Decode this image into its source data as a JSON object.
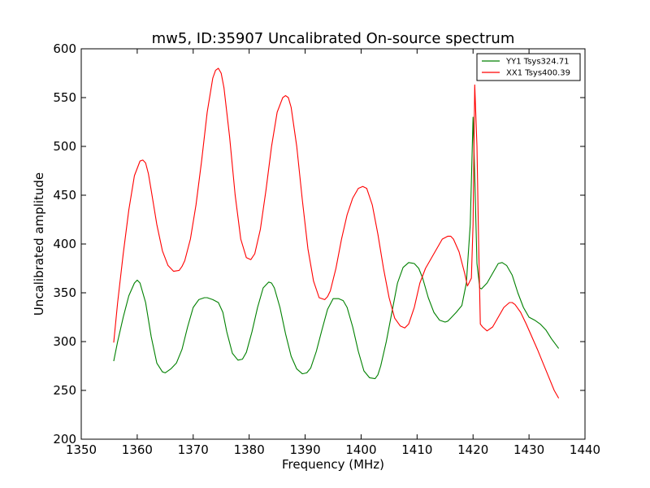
{
  "chart_data": {
    "type": "line",
    "title": "mw5, ID:35907 Uncalibrated On-source spectrum",
    "xlabel": "Frequency (MHz)",
    "ylabel": "Uncalibrated amplitude",
    "xlim": [
      1350,
      1440
    ],
    "ylim": [
      200,
      600
    ],
    "xticks": [
      1350,
      1360,
      1370,
      1380,
      1390,
      1400,
      1410,
      1420,
      1430,
      1440
    ],
    "yticks": [
      200,
      250,
      300,
      350,
      400,
      450,
      500,
      550,
      600
    ],
    "grid": false,
    "legend_position": "top-right",
    "series": [
      {
        "name": "YY1 Tsys324.71",
        "color": "#008000",
        "x": [
          1355.8,
          1356.5,
          1357.5,
          1358.5,
          1359.5,
          1360,
          1360.5,
          1361.5,
          1362.5,
          1363.5,
          1364.5,
          1365,
          1366,
          1367,
          1368,
          1369,
          1370,
          1371,
          1372,
          1372.5,
          1373.5,
          1374.5,
          1375.3,
          1376,
          1377,
          1378,
          1378.8,
          1379.5,
          1380.5,
          1381.5,
          1382.5,
          1383.5,
          1384,
          1384.5,
          1385.5,
          1386.5,
          1387.5,
          1388.5,
          1389.5,
          1390.3,
          1391,
          1392,
          1393,
          1394,
          1395,
          1396,
          1396.8,
          1397.5,
          1398.5,
          1399.5,
          1400.5,
          1401.5,
          1402.5,
          1403,
          1403.5,
          1404.5,
          1405.5,
          1406.5,
          1407.5,
          1408.5,
          1409.5,
          1410.3,
          1411,
          1412,
          1413,
          1414,
          1415,
          1415.5,
          1416,
          1417,
          1418,
          1418.8,
          1419.5,
          1420,
          1420.3,
          1420.7,
          1421.2,
          1421.5,
          1422.5,
          1423.5,
          1424.5,
          1425.2,
          1426,
          1427,
          1428,
          1429,
          1430,
          1431,
          1432,
          1433,
          1434,
          1435.3
        ],
        "y": [
          280,
          300,
          325,
          347,
          360,
          363,
          360,
          340,
          305,
          278,
          269,
          268,
          272,
          278,
          292,
          315,
          335,
          343,
          345,
          345,
          343,
          340,
          330,
          310,
          288,
          281,
          282,
          289,
          310,
          335,
          355,
          361,
          360,
          355,
          335,
          308,
          285,
          272,
          267,
          268,
          273,
          290,
          312,
          333,
          344,
          344,
          342,
          335,
          315,
          290,
          270,
          263,
          262,
          266,
          275,
          300,
          330,
          360,
          376,
          381,
          380,
          375,
          365,
          345,
          330,
          322,
          320,
          321,
          324,
          330,
          337,
          360,
          420,
          530,
          470,
          380,
          355,
          354,
          360,
          370,
          380,
          381,
          378,
          368,
          350,
          335,
          325,
          322,
          318,
          312,
          303,
          293
        ]
      },
      {
        "name": "XX1 Tsys400.39",
        "color": "#ff0000",
        "x": [
          1355.8,
          1356.5,
          1357.5,
          1358.5,
          1359.5,
          1360.5,
          1361,
          1361.5,
          1362,
          1362.5,
          1363.5,
          1364.5,
          1365.5,
          1366.5,
          1367.5,
          1368,
          1368.5,
          1369.5,
          1370.5,
          1371.5,
          1372.5,
          1373.5,
          1374,
          1374.5,
          1375,
          1375.5,
          1376.5,
          1377.5,
          1378.5,
          1379.5,
          1380.3,
          1381,
          1382,
          1383,
          1384,
          1385,
          1386,
          1386.5,
          1387,
          1387.5,
          1388.5,
          1389.5,
          1390.5,
          1391.5,
          1392.5,
          1393.5,
          1394,
          1394.5,
          1395.5,
          1396.5,
          1397.5,
          1398.5,
          1399.5,
          1400.3,
          1401,
          1402,
          1403,
          1404,
          1405,
          1406,
          1407,
          1407.8,
          1408.5,
          1409.5,
          1410.5,
          1411.5,
          1412.5,
          1413.5,
          1414.5,
          1415.5,
          1416,
          1416.5,
          1417.5,
          1418.5,
          1419,
          1419.7,
          1420,
          1420.3,
          1420.7,
          1421,
          1421.3,
          1421.7,
          1422.5,
          1423.5,
          1424.5,
          1425.5,
          1426.5,
          1427,
          1427.5,
          1428.5,
          1429.5,
          1430.5,
          1431.5,
          1432.5,
          1433.5,
          1434.5,
          1435.3
        ],
        "y": [
          299,
          340,
          390,
          435,
          470,
          485,
          486,
          483,
          472,
          455,
          420,
          393,
          378,
          372,
          373,
          377,
          383,
          405,
          440,
          485,
          535,
          570,
          578,
          580,
          575,
          560,
          510,
          450,
          405,
          386,
          384,
          390,
          415,
          455,
          500,
          535,
          550,
          552,
          550,
          540,
          500,
          445,
          395,
          362,
          345,
          343,
          346,
          352,
          375,
          405,
          430,
          447,
          457,
          459,
          457,
          440,
          410,
          375,
          345,
          324,
          316,
          314,
          318,
          335,
          360,
          375,
          385,
          395,
          405,
          408,
          408,
          405,
          392,
          370,
          357,
          365,
          420,
          563,
          500,
          400,
          318,
          315,
          311,
          315,
          325,
          335,
          340,
          340,
          338,
          330,
          318,
          305,
          292,
          278,
          264,
          250,
          242
        ]
      }
    ]
  }
}
